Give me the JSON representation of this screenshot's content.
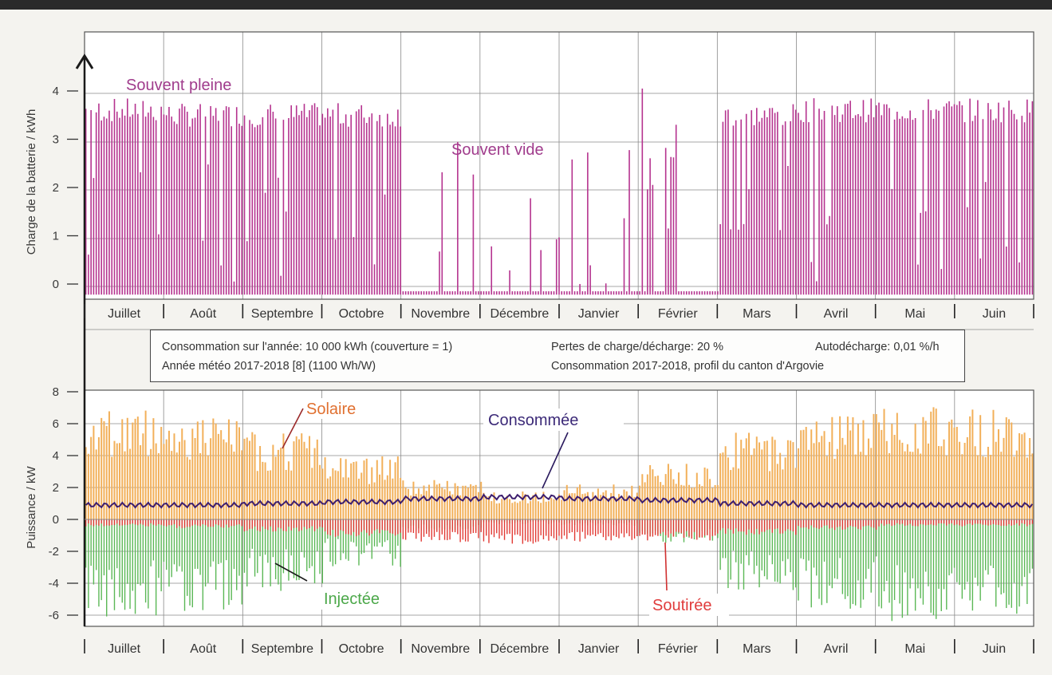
{
  "colors": {
    "battery": "#b5338f",
    "solar": "#f2b05a",
    "consumed": "#3d1e6e",
    "injected": "#5bb856",
    "drawn": "#e23a34",
    "annot_battery": "#a03c8c",
    "annot_solar": "#e07030",
    "annot_consumed": "#3c2a78",
    "annot_injected": "#4ca84a",
    "annot_drawn": "#e03c3c"
  },
  "months": [
    "Juillet",
    "Août",
    "Septembre",
    "Octobre",
    "Novembre",
    "Décembre",
    "Janvier",
    "Février",
    "Mars",
    "Avril",
    "Mai",
    "Juin"
  ],
  "info": {
    "line1_left": "Consommation sur l'année: 10 000 kWh (couverture = 1)",
    "line1_mid": "Pertes de charge/décharge: 20 %",
    "line1_right": "Autodécharge: 0,01 %/h",
    "line2_left": "Année météo 2017-2018 [8] (1100 Wh/W)",
    "line2_mid": "Consommation 2017-2018, profil du canton d'Argovie"
  },
  "chart_data": [
    {
      "type": "bar",
      "ylabel": "Charge de la batterie / kWh",
      "ylim": [
        -0.2,
        4.3
      ],
      "yticks": [
        0,
        1,
        2,
        3,
        4
      ],
      "categories": [
        "Juillet",
        "Août",
        "Septembre",
        "Octobre",
        "Novembre",
        "Décembre",
        "Janvier",
        "Février",
        "Mars",
        "Avril",
        "Mai",
        "Juin"
      ],
      "series": [
        {
          "values": [
            3.6,
            3.5,
            3.5,
            3.5,
            0.6,
            0.3,
            0.9,
            1.8,
            3.5,
            3.6,
            3.6,
            3.6
          ]
        }
      ],
      "annotations": [
        "Souvent pleine",
        "Souvent vide"
      ]
    },
    {
      "type": "area",
      "ylabel": "Puissance / kW",
      "ylim": [
        -7,
        8
      ],
      "yticks": [
        -6,
        -4,
        -2,
        0,
        2,
        4,
        6,
        8
      ],
      "categories": [
        "Juillet",
        "Août",
        "Septembre",
        "Octobre",
        "Novembre",
        "Décembre",
        "Janvier",
        "Février",
        "Mars",
        "Avril",
        "Mai",
        "Juin"
      ],
      "series": [
        {
          "name": "Solaire",
          "values": [
            7.0,
            6.5,
            5.5,
            4.0,
            2.5,
            1.8,
            2.2,
            3.5,
            5.5,
            6.8,
            7.2,
            7.0
          ]
        },
        {
          "name": "Consommée",
          "values": [
            0.9,
            0.9,
            1.0,
            1.1,
            1.3,
            1.4,
            1.3,
            1.2,
            1.0,
            0.9,
            0.9,
            0.9
          ]
        },
        {
          "name": "Injectée",
          "values": [
            -6.2,
            -5.8,
            -4.5,
            -3.0,
            -0.8,
            -0.3,
            -0.4,
            -1.5,
            -4.5,
            -5.8,
            -6.4,
            -6.2
          ]
        },
        {
          "name": "Soutirée",
          "values": [
            -0.4,
            -0.5,
            -0.7,
            -1.0,
            -1.3,
            -1.4,
            -1.3,
            -1.2,
            -0.9,
            -0.6,
            -0.4,
            -0.4
          ]
        }
      ],
      "annotations": [
        "Solaire",
        "Consommée",
        "Injectée",
        "Soutirée"
      ]
    }
  ]
}
